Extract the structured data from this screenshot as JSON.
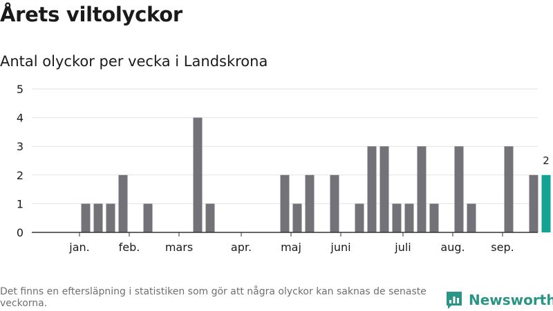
{
  "title": "Årets viltolyckor",
  "subtitle": "Antal olyckor per vecka i Landskrona",
  "footnote": "Det finns en eftersläpning i statistiken som gör att några olyckor kan saknas de senaste veckorna.",
  "brand": {
    "name": "Newsworthy",
    "icon": "newsworthy-logo-icon",
    "color": "#2a9486"
  },
  "colors": {
    "bar": "#737278",
    "highlight": "#12a394",
    "grid": "#e2e2e2",
    "axis": "#333333"
  },
  "chart_data": {
    "type": "bar",
    "title": "Antal olyckor per vecka i Landskrona",
    "xlabel": "",
    "ylabel": "",
    "ylim": [
      0,
      5
    ],
    "yticks": [
      0,
      1,
      2,
      3,
      4,
      5
    ],
    "grid": true,
    "weeks": [
      1,
      2,
      3,
      4,
      5,
      6,
      7,
      8,
      9,
      10,
      11,
      12,
      13,
      14,
      15,
      16,
      17,
      18,
      19,
      20,
      21,
      22,
      23,
      24,
      25,
      26,
      27,
      28,
      29,
      30,
      31,
      32,
      33,
      34,
      35,
      36,
      37,
      38,
      39
    ],
    "values": [
      0,
      0,
      1,
      1,
      1,
      2,
      0,
      1,
      0,
      0,
      0,
      4,
      1,
      0,
      0,
      0,
      0,
      0,
      2,
      1,
      2,
      0,
      2,
      0,
      1,
      3,
      3,
      1,
      1,
      3,
      1,
      0,
      3,
      1,
      0,
      0,
      3,
      0,
      2
    ],
    "highlight": {
      "week": 40,
      "value": 2,
      "label": "2"
    },
    "month_labels": [
      {
        "label": "jan.",
        "week": 2.5
      },
      {
        "label": "feb.",
        "week": 6.5
      },
      {
        "label": "mars",
        "week": 10.5
      },
      {
        "label": "apr.",
        "week": 15.5
      },
      {
        "label": "maj",
        "week": 19.5
      },
      {
        "label": "juni",
        "week": 23.5
      },
      {
        "label": "juli",
        "week": 28.5
      },
      {
        "label": "aug.",
        "week": 32.5
      },
      {
        "label": "sep.",
        "week": 36.5
      }
    ],
    "legend": "none"
  }
}
